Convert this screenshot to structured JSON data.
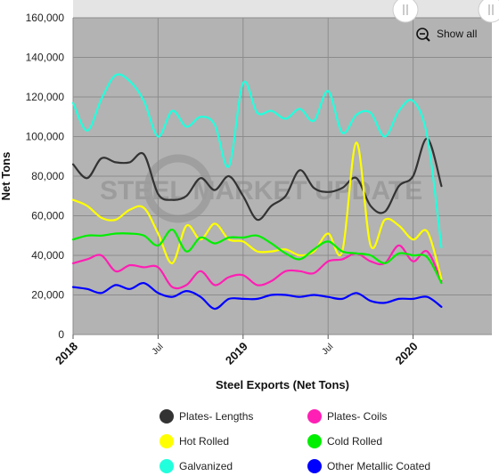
{
  "chart_data": {
    "type": "line",
    "title": "",
    "xlabel": "Steel Exports (Net Tons)",
    "ylabel": "Net Tons",
    "ylim": [
      0,
      160000
    ],
    "yticks": [
      0,
      20000,
      40000,
      60000,
      80000,
      100000,
      120000,
      140000,
      160000
    ],
    "ytick_labels": [
      "0",
      "20,000",
      "40,000",
      "60,000",
      "80,000",
      "100,000",
      "120,000",
      "140,000",
      "160,000"
    ],
    "x_start": "2018-01",
    "xticks": [
      {
        "label": "2018",
        "index": 0,
        "major": true
      },
      {
        "label": "Jul",
        "index": 6,
        "major": false
      },
      {
        "label": "2019",
        "index": 12,
        "major": true
      },
      {
        "label": "Jul",
        "index": 18,
        "major": false
      },
      {
        "label": "2020",
        "index": 24,
        "major": true
      }
    ],
    "grid": true,
    "legend_position": "bottom",
    "watermark": "STEEL MARKET UPDATE",
    "reset_zoom_label": "Show all",
    "series": [
      {
        "name": "Plates- Lengths",
        "color": "#333333",
        "values": [
          86000,
          79000,
          89000,
          87000,
          87000,
          91000,
          71000,
          68000,
          70000,
          79000,
          73000,
          80000,
          70000,
          58000,
          65000,
          70000,
          83000,
          74000,
          72000,
          74000,
          79000,
          65000,
          62000,
          75000,
          80000,
          99000,
          75000
        ]
      },
      {
        "name": "Plates- Coils",
        "color": "#ff1fb4",
        "values": [
          36000,
          38000,
          40000,
          32000,
          35000,
          34000,
          34000,
          24000,
          25000,
          32000,
          25000,
          29000,
          30000,
          25000,
          27000,
          32000,
          32000,
          31000,
          37000,
          38000,
          41000,
          37000,
          36000,
          45000,
          37000,
          42000,
          27000
        ]
      },
      {
        "name": "Hot Rolled",
        "color": "#ffff00",
        "values": [
          68000,
          65000,
          59000,
          58000,
          63000,
          64000,
          51000,
          36000,
          55000,
          48000,
          56000,
          48000,
          47000,
          42000,
          42000,
          43000,
          40000,
          42000,
          51000,
          42000,
          97000,
          45000,
          58000,
          55000,
          48000,
          52000,
          28000
        ]
      },
      {
        "name": "Cold Rolled",
        "color": "#00ee00",
        "values": [
          48000,
          50000,
          50000,
          51000,
          51000,
          50000,
          45000,
          53000,
          42000,
          49000,
          46000,
          49000,
          49000,
          50000,
          46000,
          41000,
          38000,
          43000,
          47000,
          42000,
          41000,
          40000,
          36000,
          41000,
          40000,
          39000,
          26000
        ]
      },
      {
        "name": "Galvanized",
        "color": "#22ffdd",
        "values": [
          117000,
          103000,
          119000,
          131000,
          128000,
          118000,
          100000,
          113000,
          105000,
          110000,
          106000,
          85000,
          127000,
          112000,
          113000,
          109000,
          114000,
          108000,
          123000,
          102000,
          111000,
          112000,
          100000,
          113000,
          118000,
          100000,
          44000
        ]
      },
      {
        "name": "Other Metallic Coated",
        "color": "#0000ff",
        "values": [
          24000,
          23000,
          21000,
          25000,
          23000,
          26000,
          21000,
          19000,
          22000,
          19000,
          13000,
          18000,
          18000,
          18000,
          20000,
          20000,
          19000,
          20000,
          19000,
          18000,
          21000,
          17000,
          16000,
          18000,
          18000,
          19000,
          14000
        ]
      }
    ]
  }
}
